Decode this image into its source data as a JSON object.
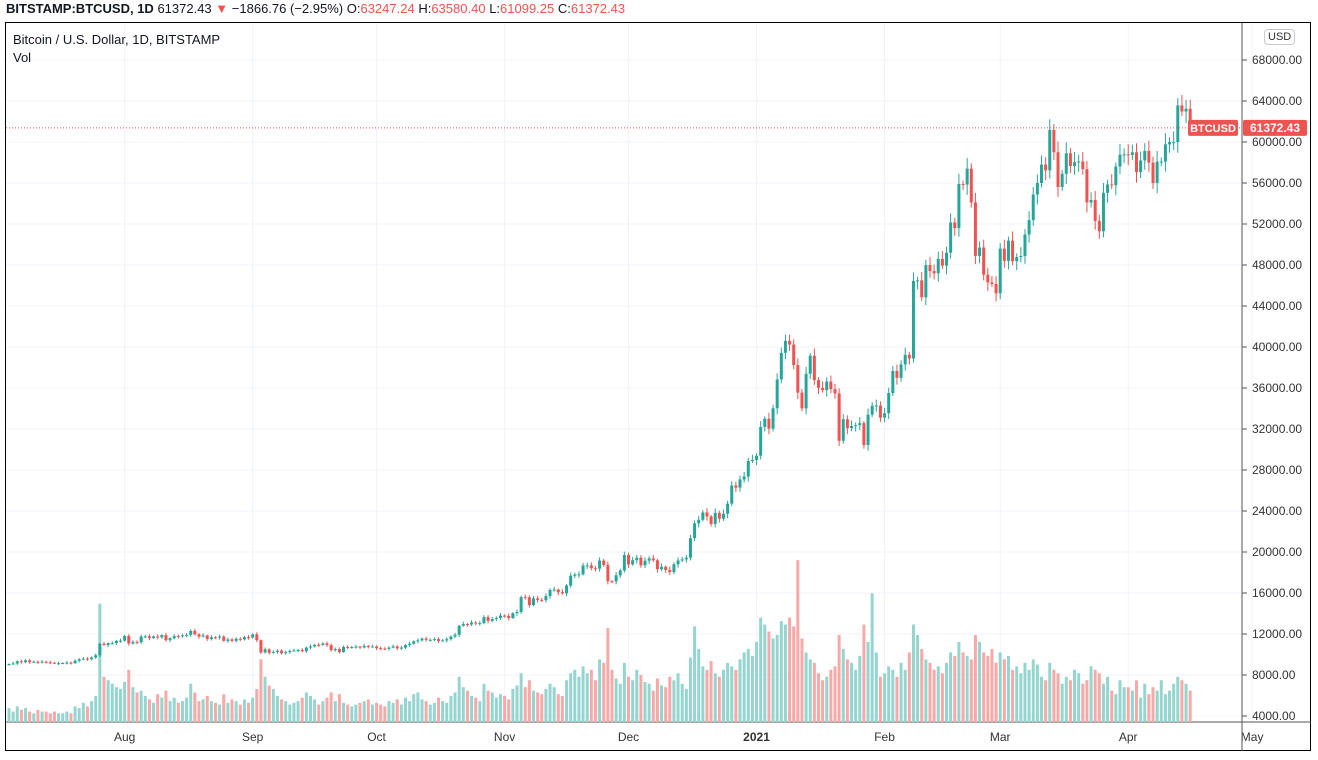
{
  "header": {
    "symbol": "BITSTAMP:BTCUSD, 1D",
    "last": "61372.43",
    "arrow": "▼",
    "change": "−1866.76 (−2.95%)",
    "o_label": "O:",
    "o": "63247.24",
    "h_label": "H:",
    "h": "63580.40",
    "l_label": "L:",
    "l": "61099.25",
    "c_label": "C:",
    "c": "61372.43"
  },
  "legend": {
    "title": "Bitcoin / U.S. Dollar, 1D, BITSTAMP",
    "vol": "Vol"
  },
  "currency_button": "USD",
  "price_tag": {
    "label": "BTCUSD",
    "value": "61372.43"
  },
  "colors": {
    "up": "#26a69a",
    "down": "#ef5350",
    "up_vol": "#95d5cf",
    "down_vol": "#f7a9a7",
    "grid": "#f0f3fa"
  },
  "chart_data": {
    "type": "candlestick",
    "title": "Bitcoin / U.S. Dollar, 1D, BITSTAMP",
    "start_date": "2020-07-04",
    "ylim": [
      4000,
      68000
    ],
    "yticks": [
      "68000.00",
      "64000.00",
      "60000.00",
      "56000.00",
      "52000.00",
      "48000.00",
      "44000.00",
      "40000.00",
      "36000.00",
      "32000.00",
      "28000.00",
      "24000.00",
      "20000.00",
      "16000.00",
      "12000.00",
      "8000.00",
      "4000.00"
    ],
    "xticks": [
      {
        "label": "Aug",
        "date": "2020-08-01"
      },
      {
        "label": "Sep",
        "date": "2020-09-01"
      },
      {
        "label": "Oct",
        "date": "2020-10-01"
      },
      {
        "label": "Nov",
        "date": "2020-11-01"
      },
      {
        "label": "Dec",
        "date": "2020-12-01"
      },
      {
        "label": "2021",
        "date": "2021-01-01"
      },
      {
        "label": "Feb",
        "date": "2021-02-01"
      },
      {
        "label": "Mar",
        "date": "2021-03-01"
      },
      {
        "label": "Apr",
        "date": "2021-04-01"
      },
      {
        "label": "May",
        "date": "2021-05-01"
      }
    ],
    "first_open": 9060,
    "close": [
      9070,
      9130,
      9340,
      9250,
      9430,
      9240,
      9290,
      9240,
      9300,
      9240,
      9200,
      9130,
      9150,
      9170,
      9210,
      9160,
      9390,
      9530,
      9600,
      9550,
      9700,
      9930,
      11040,
      10920,
      11100,
      11100,
      11330,
      11350,
      11800,
      11070,
      11230,
      11190,
      11750,
      11770,
      11600,
      11760,
      11680,
      11890,
      11400,
      11580,
      11790,
      11770,
      11860,
      11910,
      12300,
      11970,
      11750,
      11860,
      11520,
      11680,
      11650,
      11750,
      11330,
      11470,
      11330,
      11530,
      11470,
      11700,
      11660,
      11960,
      11400,
      10200,
      10500,
      10160,
      10250,
      10380,
      10120,
      10230,
      10350,
      10400,
      10440,
      10330,
      10680,
      10790,
      10950,
      10940,
      11080,
      10920,
      10420,
      10530,
      10240,
      10740,
      10690,
      10730,
      10770,
      10690,
      10840,
      10780,
      10780,
      10620,
      10570,
      10550,
      10670,
      10790,
      10600,
      10670,
      10920,
      11050,
      11300,
      11380,
      11550,
      11430,
      11430,
      11500,
      11330,
      11370,
      11500,
      11750,
      11920,
      12800,
      12970,
      12930,
      13120,
      13030,
      13070,
      13650,
      13280,
      13460,
      13570,
      13800,
      13760,
      13560,
      14030,
      14150,
      15590,
      15580,
      14830,
      15480,
      15330,
      15300,
      15700,
      16300,
      16330,
      16080,
      15960,
      16730,
      17680,
      17800,
      17820,
      18680,
      18700,
      18420,
      18370,
      19160,
      18730,
      17150,
      17130,
      17730,
      18200,
      19700,
      18790,
      19200,
      19440,
      18700,
      19150,
      19380,
      19190,
      18320,
      18550,
      18250,
      18040,
      18800,
      19170,
      19280,
      19440,
      21350,
      22800,
      23140,
      23860,
      23470,
      22740,
      23820,
      23250,
      23730,
      24710,
      26490,
      26280,
      27080,
      27360,
      28880,
      28990,
      29400,
      32200,
      33000,
      32030,
      34030,
      36830,
      39430,
      40600,
      40240,
      38240,
      35550,
      34010,
      37390,
      39150,
      36770,
      36020,
      35790,
      36630,
      35900,
      35470,
      30850,
      32950,
      32080,
      32280,
      32370,
      32570,
      30430,
      33400,
      34270,
      34290,
      33110,
      33540,
      35510,
      37660,
      36990,
      38300,
      39240,
      38880,
      46440,
      46500,
      44850,
      48000,
      47410,
      47190,
      48600,
      47940,
      49200,
      52150,
      51600,
      55900,
      55850,
      57400,
      54100,
      48890,
      49700,
      47050,
      46300,
      46150,
      45240,
      49600,
      48400,
      50370,
      48370,
      48770,
      48880,
      50970,
      52380,
      54880,
      56000,
      57800,
      57230,
      61180,
      59000,
      55610,
      56900,
      58900,
      57650,
      58030,
      58100,
      57350,
      54100,
      54340,
      52300,
      51300,
      55040,
      55860,
      55780,
      57600,
      58760,
      58800,
      58730,
      58990,
      57060,
      58200,
      59130,
      57990,
      56000,
      58090,
      58090,
      59770,
      59990,
      59990,
      63570,
      62970,
      63247,
      61372
    ],
    "volume_scale_max": 100,
    "volume": [
      8,
      6,
      9,
      7,
      8,
      6,
      5,
      7,
      6,
      6,
      5,
      6,
      5,
      5,
      6,
      5,
      9,
      8,
      11,
      9,
      12,
      15,
      68,
      26,
      24,
      22,
      20,
      19,
      23,
      30,
      20,
      17,
      18,
      15,
      13,
      11,
      16,
      14,
      18,
      12,
      14,
      11,
      12,
      14,
      22,
      17,
      12,
      13,
      15,
      12,
      11,
      10,
      16,
      11,
      13,
      12,
      10,
      13,
      11,
      14,
      19,
      36,
      26,
      21,
      19,
      15,
      13,
      12,
      10,
      11,
      12,
      14,
      17,
      15,
      13,
      10,
      12,
      14,
      17,
      12,
      16,
      11,
      10,
      9,
      10,
      11,
      12,
      13,
      10,
      11,
      10,
      9,
      12,
      11,
      13,
      10,
      14,
      12,
      16,
      17,
      13,
      12,
      10,
      11,
      14,
      12,
      11,
      15,
      17,
      26,
      20,
      18,
      15,
      14,
      12,
      22,
      18,
      17,
      14,
      16,
      15,
      13,
      19,
      21,
      28,
      20,
      24,
      18,
      17,
      16,
      19,
      22,
      20,
      16,
      15,
      24,
      28,
      30,
      26,
      32,
      28,
      30,
      24,
      36,
      34,
      54,
      30,
      25,
      22,
      34,
      26,
      24,
      30,
      27,
      23,
      22,
      18,
      25,
      21,
      20,
      26,
      24,
      28,
      22,
      19,
      37,
      55,
      42,
      32,
      30,
      35,
      28,
      26,
      30,
      34,
      32,
      30,
      36,
      40,
      42,
      38,
      46,
      60,
      56,
      52,
      48,
      50,
      58,
      56,
      60,
      55,
      93,
      48,
      40,
      36,
      34,
      28,
      24,
      26,
      30,
      32,
      50,
      42,
      36,
      34,
      30,
      38,
      56,
      46,
      74,
      40,
      26,
      28,
      32,
      30,
      26,
      34,
      30,
      40,
      56,
      50,
      42,
      36,
      34,
      30,
      32,
      28,
      34,
      40,
      38,
      46,
      40,
      38,
      36,
      50,
      46,
      40,
      38,
      42,
      34,
      40,
      36,
      38,
      30,
      32,
      28,
      34,
      30,
      36,
      33,
      26,
      24,
      34,
      30,
      28,
      22,
      26,
      24,
      30,
      28,
      22,
      24,
      32,
      30,
      28,
      22,
      26,
      18,
      16,
      24,
      20,
      20,
      18,
      24,
      14,
      22,
      16,
      20,
      18,
      24,
      16,
      18,
      22,
      26,
      24,
      22,
      18
    ]
  }
}
